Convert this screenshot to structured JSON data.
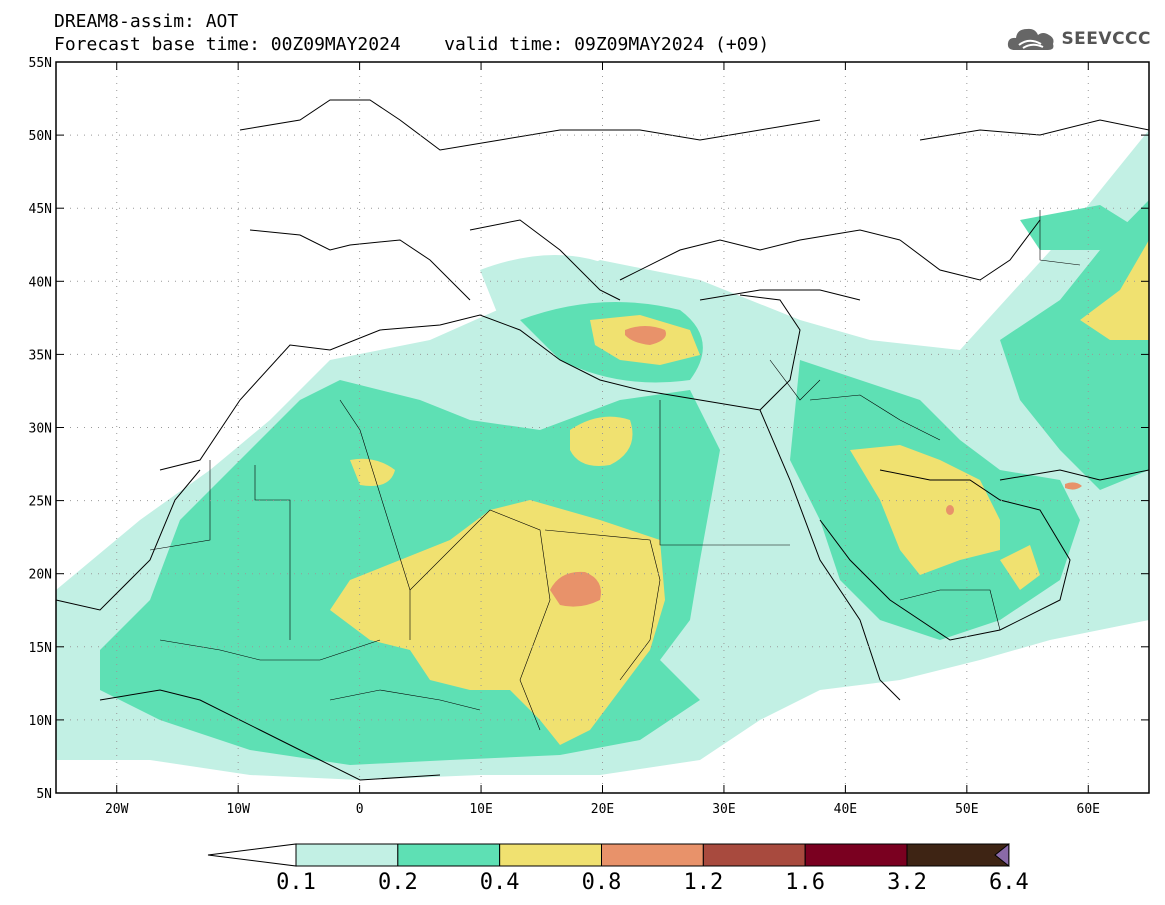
{
  "header": {
    "title_line1": "DREAM8-assim: AOT",
    "title_line2": "Forecast base time: 00Z09MAY2024    valid time: 09Z09MAY2024 (+09)",
    "logo_text": "SEEVCCC",
    "logo_icon": "cloud-icon"
  },
  "map": {
    "lon_range": [
      -25,
      65
    ],
    "lat_range": [
      5,
      55
    ],
    "lon_ticks": [
      {
        "value": -20,
        "label": "20W"
      },
      {
        "value": -10,
        "label": "10W"
      },
      {
        "value": 0,
        "label": "0"
      },
      {
        "value": 10,
        "label": "10E"
      },
      {
        "value": 20,
        "label": "20E"
      },
      {
        "value": 30,
        "label": "30E"
      },
      {
        "value": 40,
        "label": "40E"
      },
      {
        "value": 50,
        "label": "50E"
      },
      {
        "value": 60,
        "label": "60E"
      }
    ],
    "lat_ticks": [
      {
        "value": 5,
        "label": "5N"
      },
      {
        "value": 10,
        "label": "10N"
      },
      {
        "value": 15,
        "label": "15N"
      },
      {
        "value": 20,
        "label": "20N"
      },
      {
        "value": 25,
        "label": "25N"
      },
      {
        "value": 30,
        "label": "30N"
      },
      {
        "value": 35,
        "label": "35N"
      },
      {
        "value": 40,
        "label": "40N"
      },
      {
        "value": 45,
        "label": "45N"
      },
      {
        "value": 50,
        "label": "50N"
      },
      {
        "value": 55,
        "label": "55N"
      }
    ],
    "grid": "dotted"
  },
  "colorbar": {
    "colors": [
      "#c2f0e4",
      "#5ee0b4",
      "#f0e170",
      "#e8926a",
      "#a84a3e",
      "#7a0020",
      "#3e2414",
      "#8a6aa8"
    ],
    "labels": [
      "0.1",
      "0.2",
      "0.4",
      "0.8",
      "1.2",
      "1.6",
      "3.2",
      "6.4"
    ]
  }
}
